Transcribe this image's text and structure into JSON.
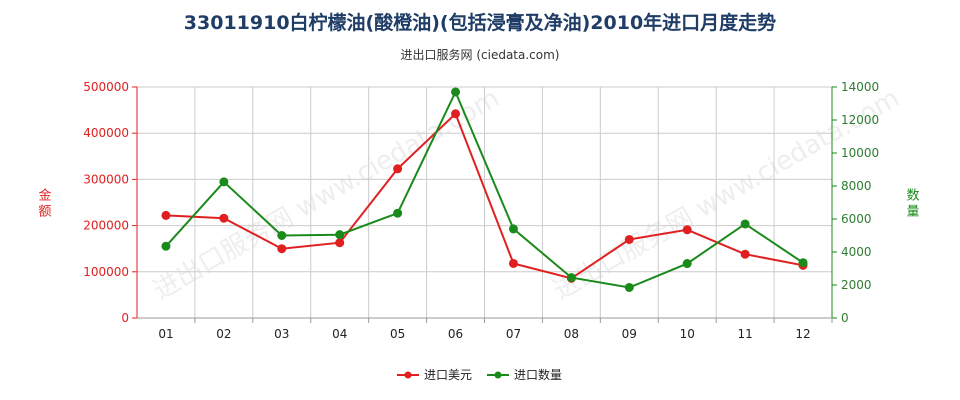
{
  "title": "33011910白柠檬油(酸橙油)(包括浸膏及净油)2010年进口月度走势",
  "subtitle": "进出口服务网 (ciedata.com)",
  "watermark": "进出口服务网 www.ciedata.com",
  "colors": {
    "series_usd": "#e02020",
    "series_qty": "#1a8a1a",
    "grid": "#cccccc"
  },
  "chart_data": {
    "type": "line",
    "title": "33011910白柠檬油(酸橙油)(包括浸膏及净油)2010年进口月度走势",
    "subtitle": "进出口服务网 (ciedata.com)",
    "categories": [
      "01",
      "02",
      "03",
      "04",
      "05",
      "06",
      "07",
      "08",
      "09",
      "10",
      "11",
      "12"
    ],
    "left_axis": {
      "label": "金额",
      "ylim": [
        0,
        500000
      ],
      "ticks": [
        "0",
        "100000",
        "200000",
        "300000",
        "400000",
        "500000"
      ]
    },
    "right_axis": {
      "label": "数量",
      "ylim": [
        0,
        14000
      ],
      "ticks": [
        "0",
        "2000",
        "4000",
        "6000",
        "8000",
        "10000",
        "12000",
        "14000"
      ]
    },
    "grid": true,
    "legend_position": "bottom",
    "series": [
      {
        "name": "进口美元",
        "axis": "left",
        "values": [
          222000,
          216000,
          150000,
          163000,
          323000,
          442000,
          118000,
          86000,
          170000,
          191000,
          138000,
          114000
        ]
      },
      {
        "name": "进口数量",
        "axis": "right",
        "values": [
          4350,
          8250,
          5000,
          5050,
          6350,
          13700,
          5400,
          2450,
          1850,
          3300,
          5700,
          3350
        ]
      }
    ]
  }
}
